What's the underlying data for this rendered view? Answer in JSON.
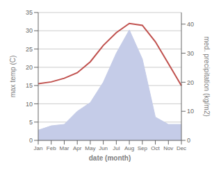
{
  "chart_data": {
    "type": "line",
    "categories": [
      "Jan",
      "Feb",
      "Mar",
      "Apr",
      "May",
      "Jun",
      "Jul",
      "Aug",
      "Sep",
      "Oct",
      "Nov",
      "Dec"
    ],
    "series": [
      {
        "type": "area",
        "color": "#c5cce8",
        "axis": "y2",
        "values": [
          3.5,
          5.0,
          5.5,
          10.0,
          13.0,
          20.0,
          30.0,
          38.0,
          28.0,
          8.0,
          5.5,
          5.5
        ]
      },
      {
        "type": "line",
        "color": "#c0504d",
        "values": [
          15.5,
          16.0,
          17.0,
          18.5,
          21.5,
          26.0,
          29.5,
          32.0,
          31.5,
          27.0,
          21.0,
          15.0
        ]
      }
    ],
    "xlabel": "date (month)",
    "ylabel": "max temp (C)",
    "y2label": "med. precipitation (kg/m2)",
    "ylim": [
      0,
      35
    ],
    "yticks": [
      0,
      5,
      10,
      15,
      20,
      25,
      30,
      35
    ],
    "y2lim": [
      0,
      44
    ],
    "y2ticks": [
      0,
      10,
      20,
      30,
      40
    ],
    "grid": true
  }
}
